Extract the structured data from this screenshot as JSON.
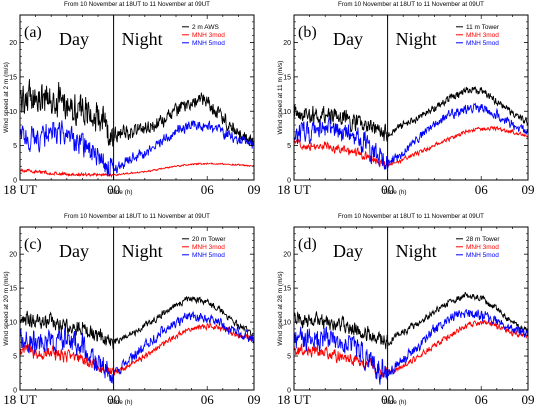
{
  "chart_data": [
    {
      "type": "line",
      "title": "From 10 November at 18UT to 11 November at 09UT",
      "panel_label": "(a)",
      "day_label": "Day",
      "night_label": "Night",
      "xlabel": "Time (h)",
      "ylabel": "Wind speed at 2 m (m/s)",
      "xtick_labels": [
        "18 UT",
        "00",
        "06",
        "09"
      ],
      "x_ticks": [
        0,
        6,
        12,
        15
      ],
      "ylim": [
        0,
        24
      ],
      "y_ticks": [
        0,
        5,
        10,
        15,
        20
      ],
      "xlim": [
        0,
        15
      ],
      "divider_x": 6,
      "legend_position": "top-right",
      "series": [
        {
          "name": "2 m AWS",
          "color": "#000000",
          "noise": 3.0,
          "x": [
            0,
            1,
            2,
            3,
            4,
            5,
            6,
            7,
            8,
            9,
            10,
            11,
            12,
            13,
            14,
            15
          ],
          "values": [
            12,
            12,
            11.5,
            11.5,
            10,
            9,
            6.5,
            7,
            7.5,
            8.5,
            10,
            11.5,
            11.5,
            9,
            6.5,
            5.5
          ]
        },
        {
          "name": "MNH 3mod",
          "color": "#ff0000",
          "noise": 0.3,
          "x": [
            0,
            1,
            2,
            3,
            4,
            5,
            6,
            7,
            8,
            9,
            10,
            11,
            12,
            13,
            14,
            15
          ],
          "values": [
            1.5,
            1.2,
            1.0,
            0.8,
            0.8,
            0.8,
            0.7,
            1.0,
            1.2,
            1.6,
            2.0,
            2.3,
            2.4,
            2.3,
            2.2,
            2.0
          ]
        },
        {
          "name": "MNH 5mod",
          "color": "#0000ff",
          "noise": 2.2,
          "x": [
            0,
            1,
            2,
            3,
            4,
            5,
            6,
            7,
            8,
            9,
            10,
            11,
            12,
            13,
            14,
            15
          ],
          "values": [
            6.5,
            6,
            7,
            6.5,
            5,
            3,
            1.5,
            3,
            4,
            5.5,
            7,
            8,
            8,
            7,
            6,
            5
          ]
        }
      ]
    },
    {
      "type": "line",
      "title": "From 10 November at 18UT to 11 November at 09UT",
      "panel_label": "(b)",
      "day_label": "Day",
      "night_label": "Night",
      "xlabel": "Time (h)",
      "ylabel": "Wind speed at 11 m (m/s)",
      "xtick_labels": [
        "18 UT",
        "00",
        "06",
        "09"
      ],
      "x_ticks": [
        0,
        6,
        12,
        15
      ],
      "ylim": [
        0,
        24
      ],
      "y_ticks": [
        0,
        5,
        10,
        15,
        20
      ],
      "xlim": [
        0,
        15
      ],
      "divider_x": 6,
      "legend_position": "top-right",
      "series": [
        {
          "name": "11 m Tower",
          "color": "#000000",
          "noise": 1.6,
          "x": [
            0,
            1,
            2,
            3,
            4,
            5,
            6,
            7,
            8,
            9,
            10,
            11,
            12,
            13,
            14,
            15
          ],
          "values": [
            10,
            9.5,
            9.5,
            9,
            8.5,
            7.5,
            6.5,
            8,
            9,
            10.5,
            12,
            13,
            13,
            11.5,
            9.5,
            8.5
          ]
        },
        {
          "name": "MNH 3mod",
          "color": "#ff0000",
          "noise": 0.8,
          "x": [
            0,
            1,
            2,
            3,
            4,
            5,
            6,
            7,
            8,
            9,
            10,
            11,
            12,
            13,
            14,
            15
          ],
          "values": [
            5.5,
            5,
            5,
            4.5,
            4,
            3,
            2,
            3,
            4,
            5,
            6,
            7,
            7.5,
            7.5,
            7,
            6.5
          ]
        },
        {
          "name": "MNH 5mod",
          "color": "#0000ff",
          "noise": 2.0,
          "x": [
            0,
            1,
            2,
            3,
            4,
            5,
            6,
            7,
            8,
            9,
            10,
            11,
            12,
            13,
            14,
            15
          ],
          "values": [
            7,
            7,
            7.5,
            7,
            6.5,
            4,
            2.5,
            4,
            6,
            8,
            9.5,
            10.5,
            10.5,
            9.5,
            8,
            7
          ]
        }
      ]
    },
    {
      "type": "line",
      "title": "From 10 November at 18UT to 11 November at 09UT",
      "panel_label": "(c)",
      "day_label": "Day",
      "night_label": "Night",
      "xlabel": "Time (h)",
      "ylabel": "Wind speed at 20 m (m/s)",
      "xtick_labels": [
        "18 UT",
        "00",
        "06",
        "09"
      ],
      "x_ticks": [
        0,
        6,
        12,
        15
      ],
      "ylim": [
        0,
        24
      ],
      "y_ticks": [
        0,
        5,
        10,
        15,
        20
      ],
      "xlim": [
        0,
        15
      ],
      "divider_x": 6,
      "legend_position": "top-right",
      "series": [
        {
          "name": "20 m Tower",
          "color": "#000000",
          "noise": 1.4,
          "x": [
            0,
            1,
            2,
            3,
            4,
            5,
            6,
            7,
            8,
            9,
            10,
            11,
            12,
            13,
            14,
            15
          ],
          "values": [
            10.5,
            10,
            10,
            9.5,
            9,
            8,
            7,
            8,
            9.5,
            11,
            12.5,
            13.5,
            13,
            11.5,
            9.5,
            8
          ]
        },
        {
          "name": "MNH 3mod",
          "color": "#ff0000",
          "noise": 1.2,
          "x": [
            0,
            1,
            2,
            3,
            4,
            5,
            6,
            7,
            8,
            9,
            10,
            11,
            12,
            13,
            14,
            15
          ],
          "values": [
            6,
            5.5,
            5.5,
            5,
            4.5,
            3.5,
            2.5,
            3.5,
            5,
            6.5,
            8,
            9,
            9.5,
            9,
            8,
            7.5
          ]
        },
        {
          "name": "MNH 5mod",
          "color": "#0000ff",
          "noise": 2.2,
          "x": [
            0,
            1,
            2,
            3,
            4,
            5,
            6,
            7,
            8,
            9,
            10,
            11,
            12,
            13,
            14,
            15
          ],
          "values": [
            7.5,
            7,
            7.5,
            7.5,
            6.5,
            4,
            2.5,
            4.5,
            6.5,
            8.5,
            10,
            11,
            10.5,
            9.5,
            8.5,
            7.5
          ]
        }
      ]
    },
    {
      "type": "line",
      "title": "From 10 November at 18UT to 11 November at 09UT",
      "panel_label": "(d)",
      "day_label": "Day",
      "night_label": "Night",
      "xlabel": "Time (h)",
      "ylabel": "Wind speed at 28 m (m/s)",
      "xtick_labels": [
        "18 UT",
        "00",
        "06",
        "09"
      ],
      "x_ticks": [
        0,
        6,
        12,
        15
      ],
      "ylim": [
        0,
        24
      ],
      "y_ticks": [
        0,
        5,
        10,
        15,
        20
      ],
      "xlim": [
        0,
        15
      ],
      "divider_x": 6,
      "legend_position": "top-right",
      "series": [
        {
          "name": "28 m Tower",
          "color": "#000000",
          "noise": 1.4,
          "x": [
            0,
            1,
            2,
            3,
            4,
            5,
            6,
            7,
            8,
            9,
            10,
            11,
            12,
            13,
            14,
            15
          ],
          "values": [
            10.5,
            10,
            10,
            9.5,
            9,
            8,
            7,
            8.5,
            10,
            11.5,
            13,
            14,
            13.5,
            12,
            10,
            8.5
          ]
        },
        {
          "name": "MNH 3mod",
          "color": "#ff0000",
          "noise": 1.2,
          "x": [
            0,
            1,
            2,
            3,
            4,
            5,
            6,
            7,
            8,
            9,
            10,
            11,
            12,
            13,
            14,
            15
          ],
          "values": [
            6,
            5.5,
            5.5,
            5,
            4.5,
            3.5,
            2.5,
            3.5,
            5,
            6.5,
            8,
            9.5,
            10,
            9.5,
            8.5,
            8
          ]
        },
        {
          "name": "MNH 5mod",
          "color": "#0000ff",
          "noise": 2.2,
          "x": [
            0,
            1,
            2,
            3,
            4,
            5,
            6,
            7,
            8,
            9,
            10,
            11,
            12,
            13,
            14,
            15
          ],
          "values": [
            7.5,
            7,
            7.5,
            7.5,
            6.5,
            4,
            2.5,
            4.5,
            6.5,
            9,
            10.5,
            11.5,
            11,
            10,
            9,
            8
          ]
        }
      ]
    }
  ]
}
